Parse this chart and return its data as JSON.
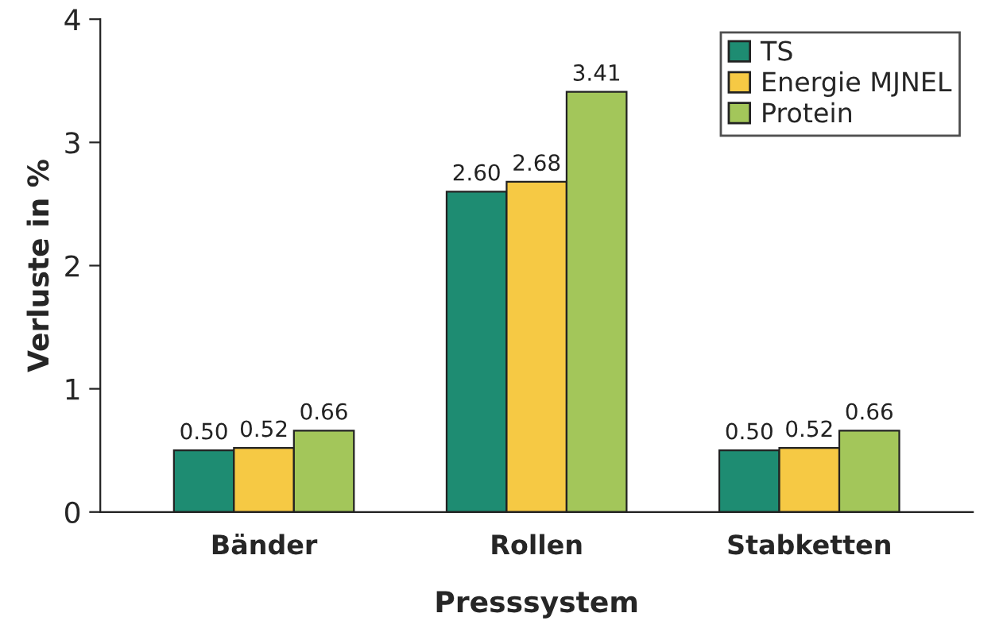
{
  "chart_data": {
    "type": "bar",
    "xlabel": "Presssystem",
    "ylabel": "Verluste in %",
    "categories": [
      "Bänder",
      "Rollen",
      "Stabketten"
    ],
    "series": [
      {
        "name": "TS",
        "color": "#1e8c72",
        "values": [
          0.5,
          2.6,
          0.5
        ],
        "value_labels": [
          "0.50",
          "2.60",
          "0.50"
        ]
      },
      {
        "name": "Energie MJNEL",
        "color": "#f6c944",
        "values": [
          0.52,
          2.68,
          0.52
        ],
        "value_labels": [
          "0.52",
          "2.68",
          "0.52"
        ]
      },
      {
        "name": "Protein",
        "color": "#a3c65a",
        "values": [
          0.66,
          3.41,
          0.66
        ],
        "value_labels": [
          "0.66",
          "3.41",
          "0.66"
        ]
      }
    ],
    "ylim": [
      0,
      4
    ],
    "yticks": [
      0,
      1,
      2,
      3,
      4
    ],
    "grid": false,
    "legend": "top right"
  }
}
